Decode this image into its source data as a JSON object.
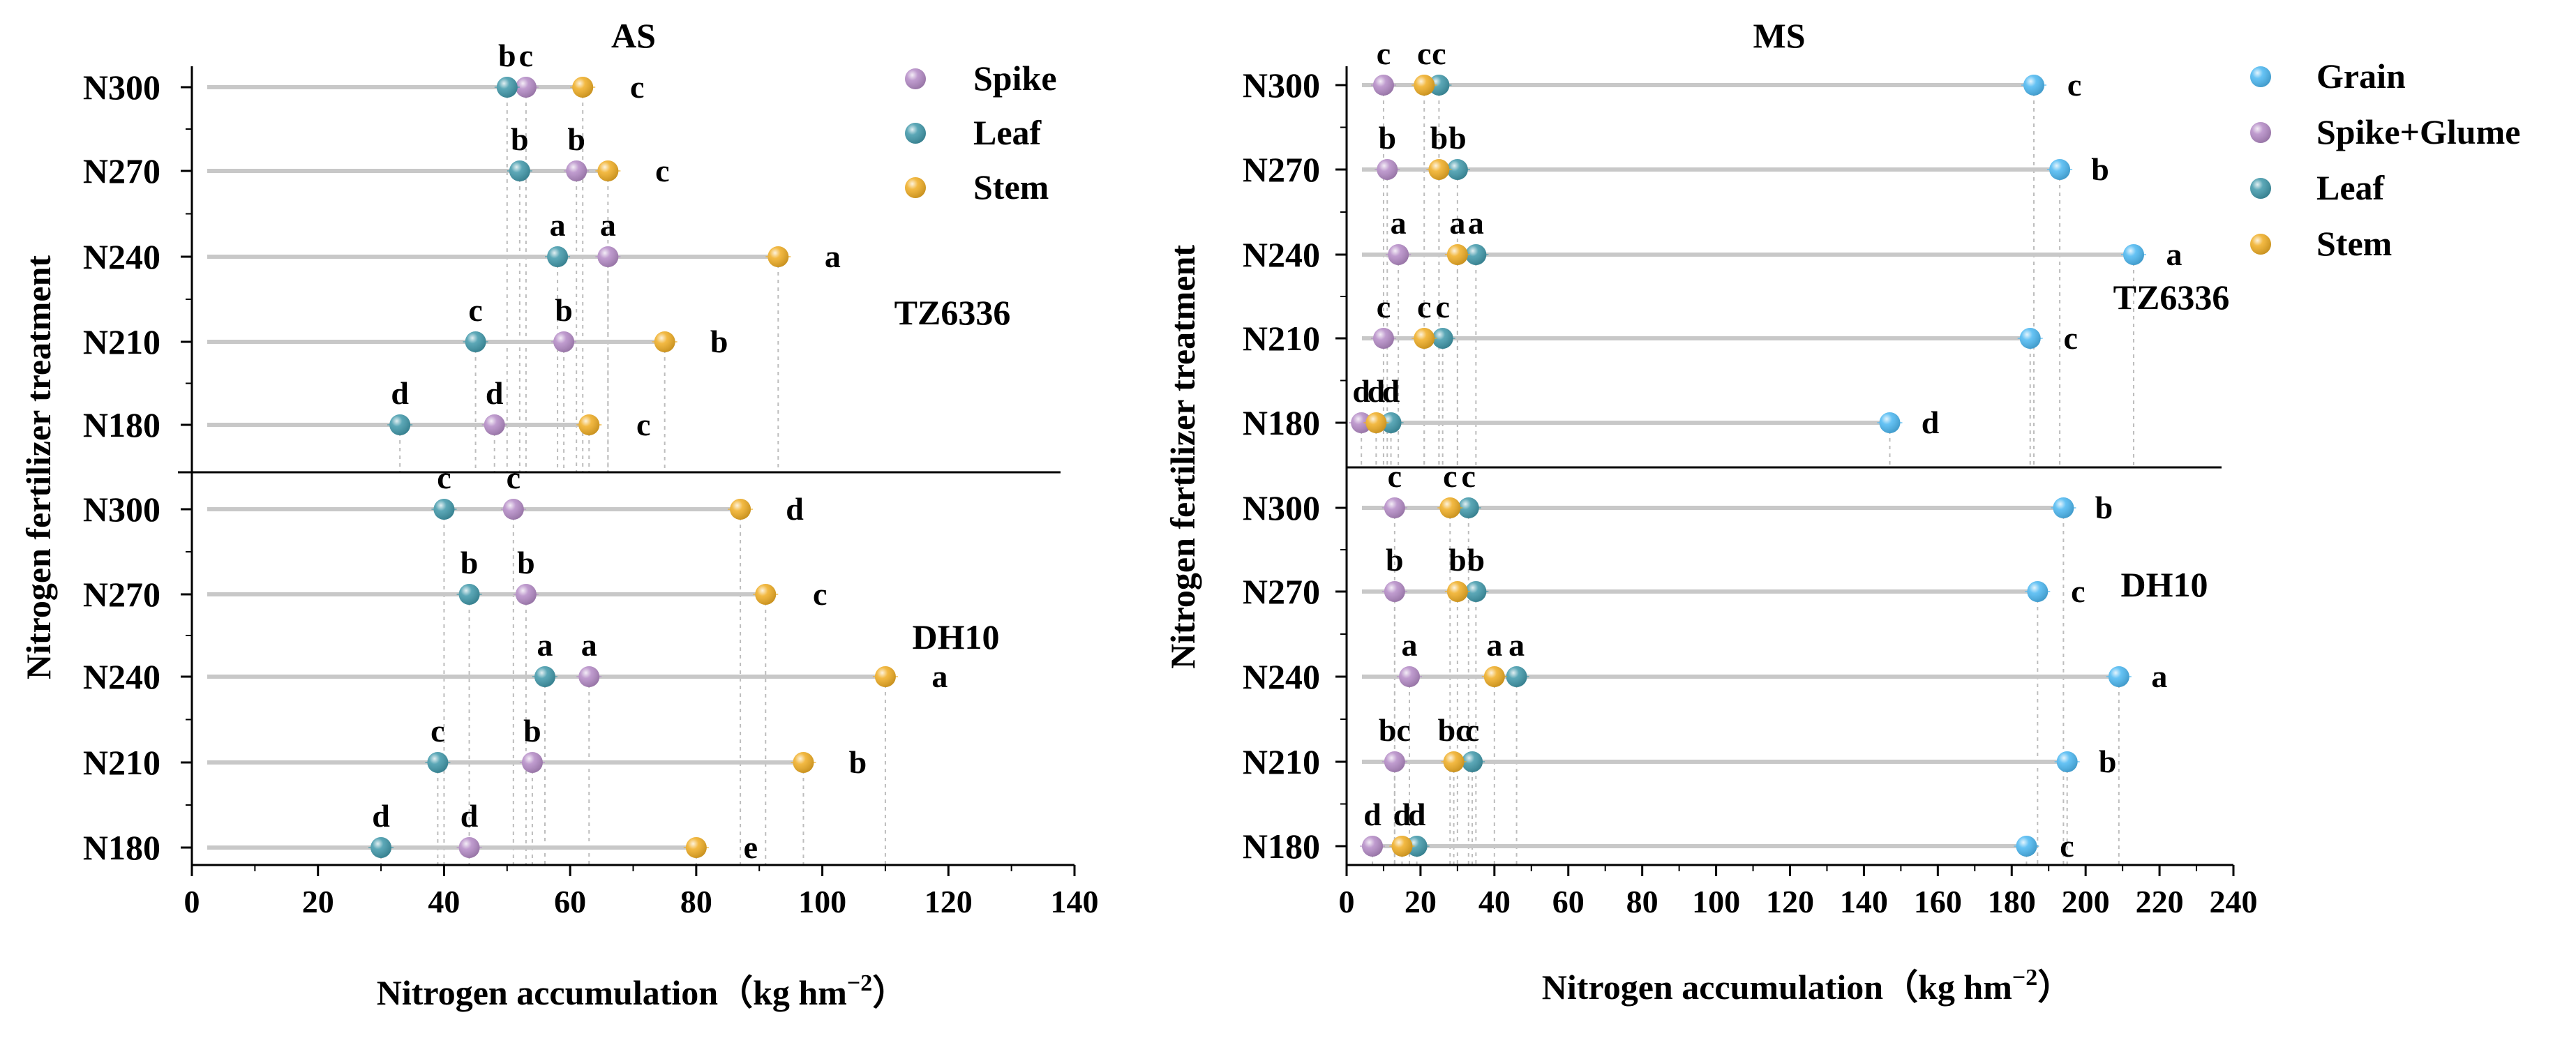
{
  "figure": {
    "y_axis_title": "Nitrogen fertilizer treatment",
    "x_axis_title": "Nitrogen accumulation（kg hm",
    "x_axis_unit_exp": "−2",
    "x_axis_unit_close": "）"
  },
  "colors": {
    "Grain": "#4bb8f2",
    "Spike": "#b48ac6",
    "Spike+Glume": "#b48ac6",
    "Leaf": "#3f98aa",
    "Stem": "#f0ad22"
  },
  "chart_data": [
    {
      "type": "scatter",
      "title": "AS",
      "xlabel": "Nitrogen accumulation（kg hm−2）",
      "ylabel": "Nitrogen fertilizer treatment",
      "xlim": [
        0,
        140
      ],
      "xticks": [
        "0",
        "20",
        "40",
        "60",
        "80",
        "100",
        "120",
        "140"
      ],
      "legend": [
        "Spike",
        "Leaf",
        "Stem"
      ],
      "panels": [
        {
          "label": "TZ6336",
          "treatments": [
            {
              "name": "N300",
              "points": [
                {
                  "series": "Spike",
                  "value": 53,
                  "letter": "c"
                },
                {
                  "series": "Leaf",
                  "value": 50,
                  "letter": "b"
                },
                {
                  "series": "Stem",
                  "value": 62,
                  "letter": "c"
                }
              ]
            },
            {
              "name": "N270",
              "points": [
                {
                  "series": "Spike",
                  "value": 61,
                  "letter": "b"
                },
                {
                  "series": "Leaf",
                  "value": 52,
                  "letter": "b"
                },
                {
                  "series": "Stem",
                  "value": 66,
                  "letter": "c"
                }
              ]
            },
            {
              "name": "N240",
              "points": [
                {
                  "series": "Spike",
                  "value": 66,
                  "letter": "a"
                },
                {
                  "series": "Leaf",
                  "value": 58,
                  "letter": "a"
                },
                {
                  "series": "Stem",
                  "value": 93,
                  "letter": "a"
                }
              ]
            },
            {
              "name": "N210",
              "points": [
                {
                  "series": "Spike",
                  "value": 59,
                  "letter": "b"
                },
                {
                  "series": "Leaf",
                  "value": 45,
                  "letter": "c"
                },
                {
                  "series": "Stem",
                  "value": 75,
                  "letter": "b"
                }
              ]
            },
            {
              "name": "N180",
              "points": [
                {
                  "series": "Spike",
                  "value": 48,
                  "letter": "d"
                },
                {
                  "series": "Leaf",
                  "value": 33,
                  "letter": "d"
                },
                {
                  "series": "Stem",
                  "value": 63,
                  "letter": "c"
                }
              ]
            }
          ]
        },
        {
          "label": "DH10",
          "treatments": [
            {
              "name": "N300",
              "points": [
                {
                  "series": "Spike",
                  "value": 51,
                  "letter": "c"
                },
                {
                  "series": "Leaf",
                  "value": 40,
                  "letter": "c"
                },
                {
                  "series": "Stem",
                  "value": 87,
                  "letter": "d"
                }
              ]
            },
            {
              "name": "N270",
              "points": [
                {
                  "series": "Spike",
                  "value": 53,
                  "letter": "b"
                },
                {
                  "series": "Leaf",
                  "value": 44,
                  "letter": "b"
                },
                {
                  "series": "Stem",
                  "value": 91,
                  "letter": "c"
                }
              ]
            },
            {
              "name": "N240",
              "points": [
                {
                  "series": "Spike",
                  "value": 63,
                  "letter": "a"
                },
                {
                  "series": "Leaf",
                  "value": 56,
                  "letter": "a"
                },
                {
                  "series": "Stem",
                  "value": 110,
                  "letter": "a"
                }
              ]
            },
            {
              "name": "N210",
              "points": [
                {
                  "series": "Spike",
                  "value": 54,
                  "letter": "b"
                },
                {
                  "series": "Leaf",
                  "value": 39,
                  "letter": "c"
                },
                {
                  "series": "Stem",
                  "value": 97,
                  "letter": "b"
                }
              ]
            },
            {
              "name": "N180",
              "points": [
                {
                  "series": "Spike",
                  "value": 44,
                  "letter": "d"
                },
                {
                  "series": "Leaf",
                  "value": 30,
                  "letter": "d"
                },
                {
                  "series": "Stem",
                  "value": 80,
                  "letter": "e"
                }
              ]
            }
          ]
        }
      ]
    },
    {
      "type": "scatter",
      "title": "MS",
      "xlabel": "Nitrogen accumulation（kg hm−2）",
      "ylabel": "Nitrogen fertilizer treatment",
      "xlim": [
        0,
        240
      ],
      "xticks": [
        "0",
        "20",
        "40",
        "60",
        "80",
        "100",
        "120",
        "140",
        "160",
        "180",
        "200",
        "220",
        "240"
      ],
      "legend": [
        "Grain",
        "Spike+Glume",
        "Leaf",
        "Stem"
      ],
      "panels": [
        {
          "label": "TZ6336",
          "treatments": [
            {
              "name": "N300",
              "points": [
                {
                  "series": "Grain",
                  "value": 186,
                  "letter": "c"
                },
                {
                  "series": "Spike+Glume",
                  "value": 10,
                  "letter": "c"
                },
                {
                  "series": "Leaf",
                  "value": 25,
                  "letter": "c"
                },
                {
                  "series": "Stem",
                  "value": 21,
                  "letter": "c"
                }
              ]
            },
            {
              "name": "N270",
              "points": [
                {
                  "series": "Grain",
                  "value": 193,
                  "letter": "b"
                },
                {
                  "series": "Spike+Glume",
                  "value": 11,
                  "letter": "b"
                },
                {
                  "series": "Leaf",
                  "value": 30,
                  "letter": "b"
                },
                {
                  "series": "Stem",
                  "value": 25,
                  "letter": "b"
                }
              ]
            },
            {
              "name": "N240",
              "points": [
                {
                  "series": "Grain",
                  "value": 213,
                  "letter": "a"
                },
                {
                  "series": "Spike+Glume",
                  "value": 14,
                  "letter": "a"
                },
                {
                  "series": "Leaf",
                  "value": 35,
                  "letter": "a"
                },
                {
                  "series": "Stem",
                  "value": 30,
                  "letter": "a"
                }
              ]
            },
            {
              "name": "N210",
              "points": [
                {
                  "series": "Grain",
                  "value": 185,
                  "letter": "c"
                },
                {
                  "series": "Spike+Glume",
                  "value": 10,
                  "letter": "c"
                },
                {
                  "series": "Leaf",
                  "value": 26,
                  "letter": "c"
                },
                {
                  "series": "Stem",
                  "value": 21,
                  "letter": "c"
                }
              ]
            },
            {
              "name": "N180",
              "points": [
                {
                  "series": "Grain",
                  "value": 147,
                  "letter": "d"
                },
                {
                  "series": "Spike+Glume",
                  "value": 4,
                  "letter": "d"
                },
                {
                  "series": "Leaf",
                  "value": 12,
                  "letter": "d"
                },
                {
                  "series": "Stem",
                  "value": 8,
                  "letter": "d"
                }
              ]
            }
          ]
        },
        {
          "label": "DH10",
          "treatments": [
            {
              "name": "N300",
              "points": [
                {
                  "series": "Grain",
                  "value": 194,
                  "letter": "b"
                },
                {
                  "series": "Spike+Glume",
                  "value": 13,
                  "letter": "c"
                },
                {
                  "series": "Leaf",
                  "value": 33,
                  "letter": "c"
                },
                {
                  "series": "Stem",
                  "value": 28,
                  "letter": "c"
                }
              ]
            },
            {
              "name": "N270",
              "points": [
                {
                  "series": "Grain",
                  "value": 187,
                  "letter": "c"
                },
                {
                  "series": "Spike+Glume",
                  "value": 13,
                  "letter": "b"
                },
                {
                  "series": "Leaf",
                  "value": 35,
                  "letter": "b"
                },
                {
                  "series": "Stem",
                  "value": 30,
                  "letter": "b"
                }
              ]
            },
            {
              "name": "N240",
              "points": [
                {
                  "series": "Grain",
                  "value": 209,
                  "letter": "a"
                },
                {
                  "series": "Spike+Glume",
                  "value": 17,
                  "letter": "a"
                },
                {
                  "series": "Leaf",
                  "value": 46,
                  "letter": "a"
                },
                {
                  "series": "Stem",
                  "value": 40,
                  "letter": "a"
                }
              ]
            },
            {
              "name": "N210",
              "points": [
                {
                  "series": "Grain",
                  "value": 195,
                  "letter": "b"
                },
                {
                  "series": "Spike+Glume",
                  "value": 13,
                  "letter": "bc"
                },
                {
                  "series": "Leaf",
                  "value": 34,
                  "letter": "c"
                },
                {
                  "series": "Stem",
                  "value": 29,
                  "letter": "bc"
                }
              ]
            },
            {
              "name": "N180",
              "points": [
                {
                  "series": "Grain",
                  "value": 184,
                  "letter": "c"
                },
                {
                  "series": "Spike+Glume",
                  "value": 7,
                  "letter": "d"
                },
                {
                  "series": "Leaf",
                  "value": 19,
                  "letter": "d"
                },
                {
                  "series": "Stem",
                  "value": 15,
                  "letter": "d"
                }
              ]
            }
          ]
        }
      ]
    }
  ]
}
